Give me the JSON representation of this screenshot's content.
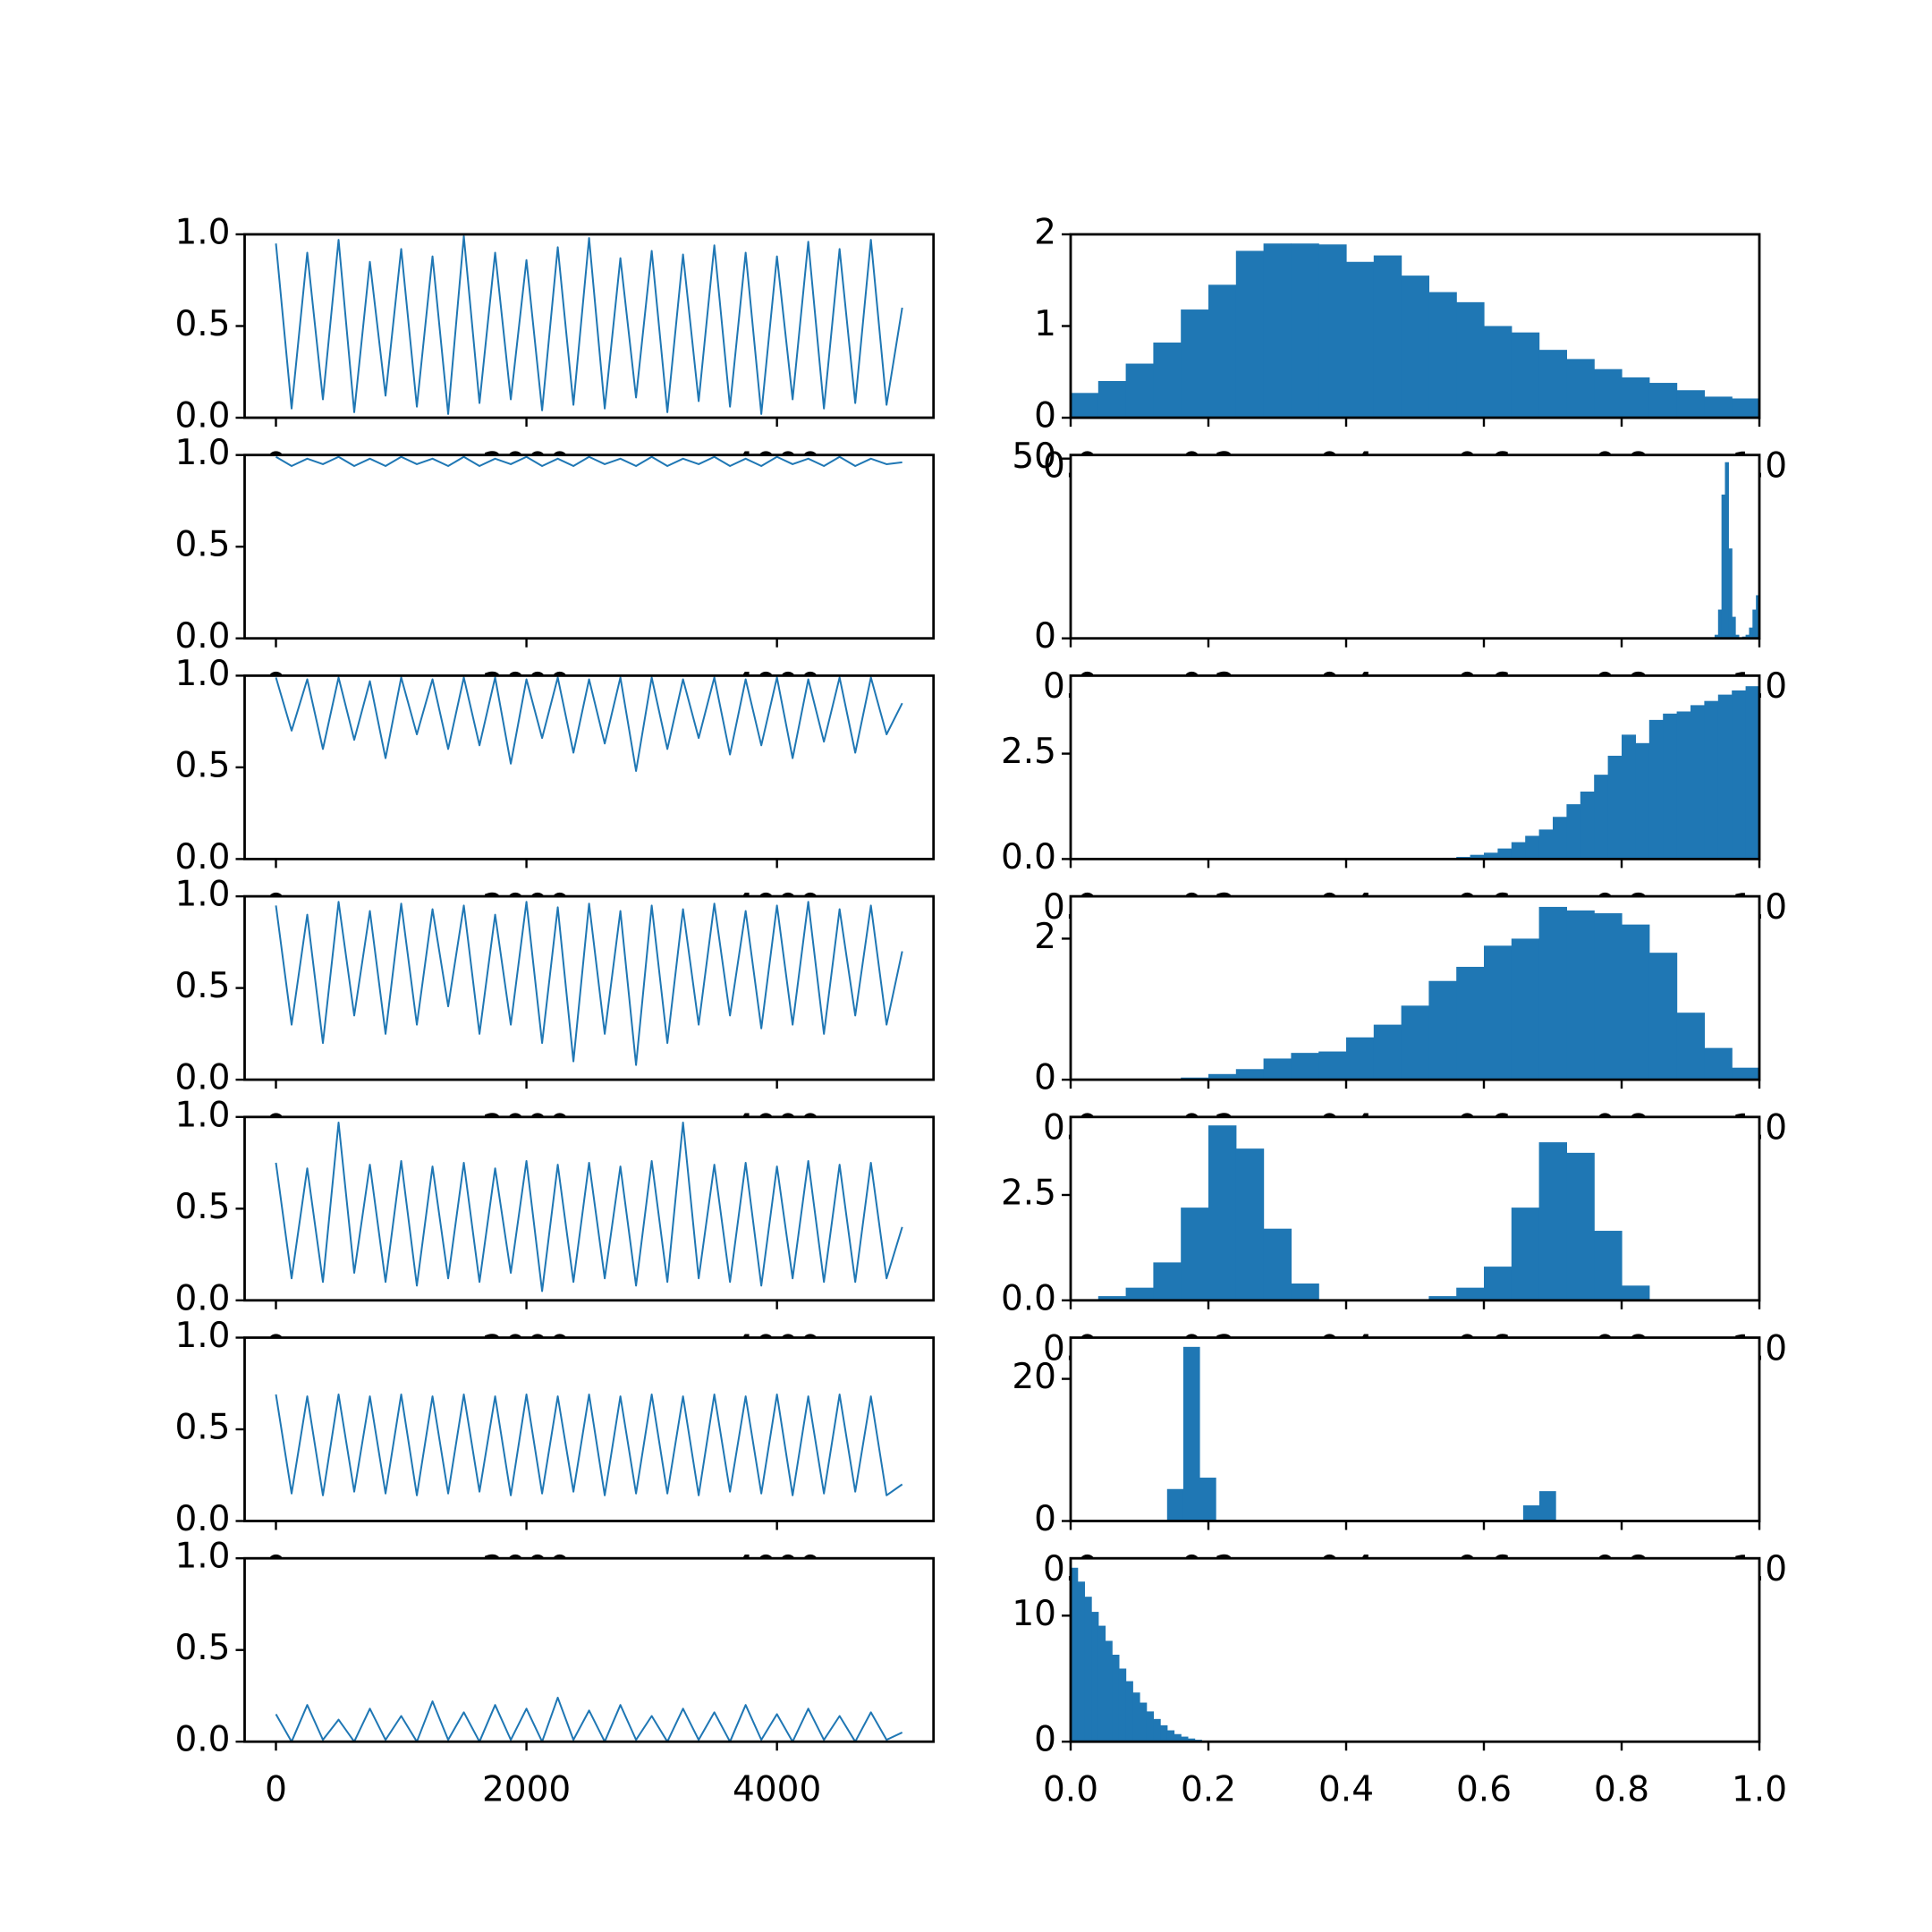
{
  "chart_data": [
    {
      "type": "line",
      "color": "#1f77b4",
      "xlim": [
        -250,
        5250
      ],
      "xticks": [
        0,
        2000,
        4000
      ],
      "ylim": [
        0,
        1
      ],
      "yticks": [
        {
          "value": 0,
          "label": "0.0"
        },
        0.5,
        {
          "value": 1,
          "label": "1.0"
        }
      ],
      "x": [
        0,
        125,
        250,
        375,
        500,
        625,
        750,
        875,
        1000,
        1125,
        1250,
        1375,
        1500,
        1625,
        1750,
        1875,
        2000,
        2125,
        2250,
        2375,
        2500,
        2625,
        2750,
        2875,
        3000,
        3125,
        3250,
        3375,
        3500,
        3625,
        3750,
        3875,
        4000,
        4125,
        4250,
        4375,
        4500,
        4625,
        4750,
        4875,
        5000
      ],
      "values": [
        0.95,
        0.05,
        0.9,
        0.1,
        0.97,
        0.03,
        0.85,
        0.12,
        0.92,
        0.06,
        0.88,
        0.02,
        0.99,
        0.08,
        0.9,
        0.1,
        0.86,
        0.04,
        0.93,
        0.07,
        0.98,
        0.05,
        0.87,
        0.11,
        0.91,
        0.03,
        0.89,
        0.09,
        0.94,
        0.06,
        0.9,
        0.02,
        0.88,
        0.1,
        0.96,
        0.05,
        0.92,
        0.08,
        0.97,
        0.07,
        0.6
      ]
    },
    {
      "type": "histogram",
      "color": "#1f77b4",
      "xlim": [
        0,
        1
      ],
      "xticks": [
        {
          "value": 0,
          "label": "0.0"
        },
        0.2,
        0.4,
        0.6,
        0.8,
        {
          "value": 1,
          "label": "1.0"
        }
      ],
      "ylim": [
        0,
        2
      ],
      "yticks": [
        0,
        1,
        2
      ],
      "bins": [
        0,
        0.04,
        0.08,
        0.12,
        0.16,
        0.2,
        0.24,
        0.28,
        0.32,
        0.36,
        0.4,
        0.44,
        0.48,
        0.52,
        0.56,
        0.6,
        0.64,
        0.68,
        0.72,
        0.76,
        0.8,
        0.84,
        0.88,
        0.92,
        0.96,
        1
      ],
      "values": [
        0.27,
        0.4,
        0.59,
        0.82,
        1.18,
        1.45,
        1.82,
        1.9,
        1.9,
        1.89,
        1.7,
        1.77,
        1.55,
        1.37,
        1.26,
        1.0,
        0.93,
        0.74,
        0.64,
        0.53,
        0.44,
        0.38,
        0.3,
        0.23,
        0.21
      ]
    },
    {
      "type": "line",
      "color": "#1f77b4",
      "xlim": [
        -250,
        5250
      ],
      "xticks": [
        0,
        2000,
        4000
      ],
      "ylim": [
        0,
        1
      ],
      "yticks": [
        {
          "value": 0,
          "label": "0.0"
        },
        0.5,
        {
          "value": 1,
          "label": "1.0"
        }
      ],
      "x": [
        0,
        125,
        250,
        375,
        500,
        625,
        750,
        875,
        1000,
        1125,
        1250,
        1375,
        1500,
        1625,
        1750,
        1875,
        2000,
        2125,
        2250,
        2375,
        2500,
        2625,
        2750,
        2875,
        3000,
        3125,
        3250,
        3375,
        3500,
        3625,
        3750,
        3875,
        4000,
        4125,
        4250,
        4375,
        4500,
        4625,
        4750,
        4875,
        5000
      ],
      "values": [
        0.99,
        0.94,
        0.98,
        0.95,
        0.99,
        0.94,
        0.98,
        0.94,
        0.99,
        0.95,
        0.98,
        0.94,
        0.99,
        0.94,
        0.98,
        0.95,
        0.99,
        0.94,
        0.98,
        0.94,
        0.99,
        0.95,
        0.98,
        0.94,
        0.99,
        0.94,
        0.98,
        0.95,
        0.99,
        0.94,
        0.98,
        0.94,
        0.99,
        0.95,
        0.98,
        0.94,
        0.99,
        0.94,
        0.98,
        0.95,
        0.96
      ]
    },
    {
      "type": "histogram",
      "color": "#1f77b4",
      "xlim": [
        0,
        1
      ],
      "xticks": [
        {
          "value": 0,
          "label": "0.0"
        },
        0.2,
        0.4,
        0.6,
        0.8,
        {
          "value": 1,
          "label": "1.0"
        }
      ],
      "ylim": [
        0,
        51
      ],
      "yticks": [
        0,
        50
      ],
      "bins": [
        0.935,
        0.94,
        0.945,
        0.95,
        0.955,
        0.96,
        0.965,
        0.97,
        0.975,
        0.98,
        0.985,
        0.99,
        0.995,
        1
      ],
      "values": [
        1,
        8,
        40,
        49,
        25,
        6,
        1,
        0.3,
        0.5,
        1,
        3,
        8,
        12
      ]
    },
    {
      "type": "line",
      "color": "#1f77b4",
      "xlim": [
        -250,
        5250
      ],
      "xticks": [
        0,
        2000,
        4000
      ],
      "ylim": [
        0,
        1
      ],
      "yticks": [
        {
          "value": 0,
          "label": "0.0"
        },
        0.5,
        {
          "value": 1,
          "label": "1.0"
        }
      ],
      "x": [
        0,
        125,
        250,
        375,
        500,
        625,
        750,
        875,
        1000,
        1125,
        1250,
        1375,
        1500,
        1625,
        1750,
        1875,
        2000,
        2125,
        2250,
        2375,
        2500,
        2625,
        2750,
        2875,
        3000,
        3125,
        3250,
        3375,
        3500,
        3625,
        3750,
        3875,
        4000,
        4125,
        4250,
        4375,
        4500,
        4625,
        4750,
        4875,
        5000
      ],
      "values": [
        0.99,
        0.7,
        0.98,
        0.6,
        0.99,
        0.65,
        0.97,
        0.55,
        0.99,
        0.68,
        0.98,
        0.6,
        0.99,
        0.62,
        0.99,
        0.52,
        0.98,
        0.66,
        0.99,
        0.58,
        0.98,
        0.63,
        0.99,
        0.48,
        0.99,
        0.6,
        0.98,
        0.66,
        0.99,
        0.57,
        0.98,
        0.62,
        0.99,
        0.55,
        0.98,
        0.64,
        0.99,
        0.58,
        0.99,
        0.68,
        0.85
      ]
    },
    {
      "type": "histogram",
      "color": "#1f77b4",
      "xlim": [
        0,
        1
      ],
      "xticks": [
        {
          "value": 0,
          "label": "0.0"
        },
        0.2,
        0.4,
        0.6,
        0.8,
        {
          "value": 1,
          "label": "1.0"
        }
      ],
      "ylim": [
        0,
        4.35
      ],
      "yticks": [
        {
          "value": 0,
          "label": "0.0"
        },
        2.5
      ],
      "bins": [
        0.5,
        0.52,
        0.54,
        0.56,
        0.58,
        0.6,
        0.62,
        0.64,
        0.66,
        0.68,
        0.7,
        0.72,
        0.74,
        0.76,
        0.78,
        0.8,
        0.82,
        0.84,
        0.86,
        0.88,
        0.9,
        0.92,
        0.94,
        0.96,
        0.98,
        1
      ],
      "values": [
        0,
        0.02,
        0.03,
        0.05,
        0.1,
        0.15,
        0.25,
        0.4,
        0.55,
        0.7,
        1.0,
        1.3,
        1.6,
        2.0,
        2.45,
        2.95,
        2.75,
        3.3,
        3.45,
        3.5,
        3.65,
        3.75,
        3.9,
        4.0,
        4.1
      ]
    },
    {
      "type": "line",
      "color": "#1f77b4",
      "xlim": [
        -250,
        5250
      ],
      "xticks": [
        0,
        2000,
        4000
      ],
      "ylim": [
        0,
        1
      ],
      "yticks": [
        {
          "value": 0,
          "label": "0.0"
        },
        0.5,
        {
          "value": 1,
          "label": "1.0"
        }
      ],
      "x": [
        0,
        125,
        250,
        375,
        500,
        625,
        750,
        875,
        1000,
        1125,
        1250,
        1375,
        1500,
        1625,
        1750,
        1875,
        2000,
        2125,
        2250,
        2375,
        2500,
        2625,
        2750,
        2875,
        3000,
        3125,
        3250,
        3375,
        3500,
        3625,
        3750,
        3875,
        4000,
        4125,
        4250,
        4375,
        4500,
        4625,
        4750,
        4875,
        5000
      ],
      "values": [
        0.95,
        0.3,
        0.9,
        0.2,
        0.97,
        0.35,
        0.92,
        0.25,
        0.96,
        0.3,
        0.93,
        0.4,
        0.95,
        0.25,
        0.9,
        0.3,
        0.97,
        0.2,
        0.94,
        0.1,
        0.96,
        0.25,
        0.92,
        0.08,
        0.95,
        0.2,
        0.93,
        0.3,
        0.96,
        0.35,
        0.92,
        0.28,
        0.95,
        0.3,
        0.97,
        0.25,
        0.93,
        0.35,
        0.95,
        0.3,
        0.7
      ]
    },
    {
      "type": "histogram",
      "color": "#1f77b4",
      "xlim": [
        0,
        1
      ],
      "xticks": [
        {
          "value": 0,
          "label": "0.0"
        },
        0.2,
        0.4,
        0.6,
        0.8,
        {
          "value": 1,
          "label": "1.0"
        }
      ],
      "ylim": [
        0,
        2.6
      ],
      "yticks": [
        0,
        2
      ],
      "bins": [
        0,
        0.04,
        0.08,
        0.12,
        0.16,
        0.2,
        0.24,
        0.28,
        0.32,
        0.36,
        0.4,
        0.44,
        0.48,
        0.52,
        0.56,
        0.6,
        0.64,
        0.68,
        0.72,
        0.76,
        0.8,
        0.84,
        0.88,
        0.92,
        0.96,
        1
      ],
      "values": [
        0,
        0,
        0,
        0,
        0.03,
        0.08,
        0.15,
        0.3,
        0.38,
        0.4,
        0.6,
        0.78,
        1.05,
        1.4,
        1.6,
        1.9,
        2.0,
        2.45,
        2.4,
        2.36,
        2.2,
        1.8,
        0.95,
        0.45,
        0.17
      ]
    },
    {
      "type": "line",
      "color": "#1f77b4",
      "xlim": [
        -250,
        5250
      ],
      "xticks": [
        0,
        2000,
        4000
      ],
      "ylim": [
        0,
        1
      ],
      "yticks": [
        {
          "value": 0,
          "label": "0.0"
        },
        0.5,
        {
          "value": 1,
          "label": "1.0"
        }
      ],
      "x": [
        0,
        125,
        250,
        375,
        500,
        625,
        750,
        875,
        1000,
        1125,
        1250,
        1375,
        1500,
        1625,
        1750,
        1875,
        2000,
        2125,
        2250,
        2375,
        2500,
        2625,
        2750,
        2875,
        3000,
        3125,
        3250,
        3375,
        3500,
        3625,
        3750,
        3875,
        4000,
        4125,
        4250,
        4375,
        4500,
        4625,
        4750,
        4875,
        5000
      ],
      "values": [
        0.75,
        0.12,
        0.72,
        0.1,
        0.97,
        0.15,
        0.74,
        0.1,
        0.76,
        0.08,
        0.73,
        0.12,
        0.75,
        0.1,
        0.72,
        0.15,
        0.76,
        0.05,
        0.74,
        0.1,
        0.75,
        0.12,
        0.73,
        0.08,
        0.76,
        0.1,
        0.97,
        0.12,
        0.74,
        0.1,
        0.75,
        0.08,
        0.73,
        0.12,
        0.76,
        0.1,
        0.74,
        0.1,
        0.75,
        0.12,
        0.4
      ]
    },
    {
      "type": "histogram",
      "color": "#1f77b4",
      "xlim": [
        0,
        1
      ],
      "xticks": [
        {
          "value": 0,
          "label": "0.0"
        },
        0.2,
        0.4,
        0.6,
        0.8,
        {
          "value": 1,
          "label": "1.0"
        }
      ],
      "ylim": [
        0,
        4.35
      ],
      "yticks": [
        {
          "value": 0,
          "label": "0.0"
        },
        2.5
      ],
      "bins": [
        0,
        0.04,
        0.08,
        0.12,
        0.16,
        0.2,
        0.24,
        0.28,
        0.32,
        0.36,
        0.4,
        0.44,
        0.48,
        0.52,
        0.56,
        0.6,
        0.64,
        0.68,
        0.72,
        0.76,
        0.8,
        0.84,
        0.88,
        0.92,
        0.96,
        1
      ],
      "values": [
        0,
        0.1,
        0.3,
        0.9,
        2.2,
        4.15,
        3.6,
        1.7,
        0.4,
        0,
        0,
        0,
        0,
        0.1,
        0.3,
        0.8,
        2.2,
        3.75,
        3.5,
        1.65,
        0.35,
        0,
        0,
        0,
        0
      ]
    },
    {
      "type": "line",
      "color": "#1f77b4",
      "xlim": [
        -250,
        5250
      ],
      "xticks": [
        0,
        2000,
        4000
      ],
      "ylim": [
        0,
        1
      ],
      "yticks": [
        {
          "value": 0,
          "label": "0.0"
        },
        0.5,
        {
          "value": 1,
          "label": "1.0"
        }
      ],
      "x": [
        0,
        125,
        250,
        375,
        500,
        625,
        750,
        875,
        1000,
        1125,
        1250,
        1375,
        1500,
        1625,
        1750,
        1875,
        2000,
        2125,
        2250,
        2375,
        2500,
        2625,
        2750,
        2875,
        3000,
        3125,
        3250,
        3375,
        3500,
        3625,
        3750,
        3875,
        4000,
        4125,
        4250,
        4375,
        4500,
        4625,
        4750,
        4875,
        5000
      ],
      "values": [
        0.69,
        0.15,
        0.68,
        0.14,
        0.69,
        0.16,
        0.68,
        0.15,
        0.69,
        0.14,
        0.68,
        0.15,
        0.69,
        0.16,
        0.68,
        0.14,
        0.69,
        0.15,
        0.68,
        0.16,
        0.69,
        0.14,
        0.68,
        0.15,
        0.69,
        0.15,
        0.68,
        0.14,
        0.69,
        0.16,
        0.68,
        0.15,
        0.69,
        0.14,
        0.68,
        0.15,
        0.69,
        0.16,
        0.68,
        0.14,
        0.2
      ]
    },
    {
      "type": "histogram",
      "color": "#1f77b4",
      "xlim": [
        0,
        1
      ],
      "xticks": [
        {
          "value": 0,
          "label": "0.0"
        },
        0.2,
        0.4,
        0.6,
        0.8,
        {
          "value": 1,
          "label": "1.0"
        }
      ],
      "ylim": [
        0,
        25.8
      ],
      "yticks": [
        0,
        20
      ],
      "bins": [
        0.14,
        0.1635,
        0.187,
        0.2105,
        0.234,
        0.2575,
        0.281,
        0.3045,
        0.328,
        0.3515,
        0.375,
        0.3985,
        0.422,
        0.4455,
        0.469,
        0.4925,
        0.516,
        0.5395,
        0.563,
        0.5865,
        0.61,
        0.6335,
        0.657,
        0.6805,
        0.704
      ],
      "values": [
        4.5,
        24.5,
        6.1,
        0,
        0,
        0,
        0,
        0,
        0,
        0,
        0,
        0,
        0,
        0,
        0,
        0,
        0,
        0,
        0,
        0,
        0,
        0,
        2.2,
        4.2
      ]
    },
    {
      "type": "line",
      "color": "#1f77b4",
      "xlim": [
        -250,
        5250
      ],
      "xticks": [
        0,
        2000,
        4000
      ],
      "ylim": [
        0,
        1
      ],
      "yticks": [
        {
          "value": 0,
          "label": "0.0"
        },
        0.5,
        {
          "value": 1,
          "label": "1.0"
        }
      ],
      "x": [
        0,
        125,
        250,
        375,
        500,
        625,
        750,
        875,
        1000,
        1125,
        1250,
        1375,
        1500,
        1625,
        1750,
        1875,
        2000,
        2125,
        2250,
        2375,
        2500,
        2625,
        2750,
        2875,
        3000,
        3125,
        3250,
        3375,
        3500,
        3625,
        3750,
        3875,
        4000,
        4125,
        4250,
        4375,
        4500,
        4625,
        4750,
        4875,
        5000
      ],
      "values": [
        0.15,
        0,
        0.2,
        0.01,
        0.12,
        0,
        0.18,
        0.01,
        0.14,
        0,
        0.22,
        0.01,
        0.16,
        0,
        0.2,
        0.01,
        0.18,
        0,
        0.24,
        0.01,
        0.17,
        0,
        0.2,
        0.01,
        0.14,
        0,
        0.18,
        0.01,
        0.16,
        0,
        0.2,
        0.01,
        0.15,
        0,
        0.18,
        0.01,
        0.14,
        0,
        0.16,
        0.01,
        0.05
      ]
    },
    {
      "type": "histogram",
      "color": "#1f77b4",
      "xlim": [
        0,
        1
      ],
      "xticks": [
        {
          "value": 0,
          "label": "0.0"
        },
        0.2,
        0.4,
        0.6,
        0.8,
        {
          "value": 1,
          "label": "1.0"
        }
      ],
      "ylim": [
        0,
        14.55
      ],
      "yticks": [
        0,
        10
      ],
      "bins": [
        0,
        0.01,
        0.02,
        0.03,
        0.04,
        0.05,
        0.06,
        0.07,
        0.08,
        0.09,
        0.1,
        0.11,
        0.12,
        0.13,
        0.14,
        0.15,
        0.16,
        0.17,
        0.18,
        0.19
      ],
      "values": [
        13.8,
        12.7,
        11.5,
        10.3,
        9.2,
        8.0,
        6.9,
        5.8,
        4.8,
        3.9,
        3.1,
        2.4,
        1.8,
        1.3,
        0.9,
        0.6,
        0.4,
        0.25,
        0.15
      ]
    }
  ]
}
